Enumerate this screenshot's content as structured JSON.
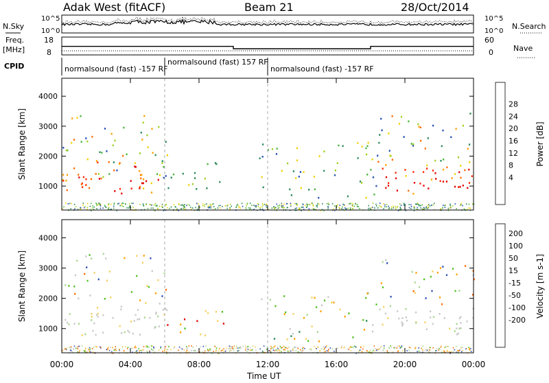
{
  "header": {
    "station": "Adak West (fitACF)",
    "beam": "Beam 21",
    "date": "28/Oct/2014"
  },
  "noise_panel": {
    "left_label": "N.Sky",
    "right_label": "N.Search",
    "ticks_left": [
      "10^5",
      "10^0"
    ],
    "ticks_right": [
      "10^5",
      "10^0"
    ]
  },
  "freq_panel": {
    "left_label": "Freq.",
    "left_unit": "[MHz]",
    "left_ticks": [
      "18",
      "8"
    ],
    "right_label": "Nave",
    "right_ticks": [
      "60",
      "0"
    ],
    "freq_segments": [
      {
        "start_h": 0,
        "end_h": 10,
        "mhz": 13.2
      },
      {
        "start_h": 10,
        "end_h": 18,
        "mhz": 11.5
      },
      {
        "start_h": 18,
        "end_h": 24,
        "mhz": 13.2
      }
    ],
    "nave_level": 12
  },
  "cpid": {
    "label": "CPID",
    "segments": [
      {
        "text": "normalsound (fast) -157 RF",
        "start_h": 0
      },
      {
        "text": "normalsound (fast) 157 RF",
        "start_h": 6
      },
      {
        "text": "normalsound (fast) -157 RF",
        "start_h": 12
      }
    ]
  },
  "x_axis": {
    "label": "Time UT",
    "ticks": [
      "00:00",
      "04:00",
      "08:00",
      "12:00",
      "16:00",
      "20:00",
      "00:00"
    ]
  },
  "chart_data": [
    {
      "type": "heatmap",
      "panel": "power",
      "ylabel": "Slant Range [km]",
      "xlim_hours": [
        0,
        24
      ],
      "ylim_km": [
        200,
        4600
      ],
      "yticks": [
        "1000",
        "2000",
        "3000",
        "4000"
      ],
      "colorbar": {
        "label": "Power [dB]",
        "ticks": [
          "4",
          "8",
          "12",
          "16",
          "20",
          "24",
          "28"
        ],
        "colors": [
          "#1a1ae6",
          "#2850b4",
          "#2a8a5a",
          "#4ab33a",
          "#9ed020",
          "#f0d000",
          "#ffa000",
          "#ff6a00",
          "#ff2800",
          "#e60000"
        ]
      },
      "regions": [
        {
          "t0": 0,
          "t1": 5.9,
          "r0": 700,
          "r1": 1900,
          "level": "high"
        },
        {
          "t0": 0,
          "t1": 6.2,
          "r0": 1300,
          "r1": 3400,
          "level": "mixed"
        },
        {
          "t0": 5.6,
          "t1": 10.2,
          "r0": 900,
          "r1": 1900,
          "level": "low"
        },
        {
          "t0": 11.5,
          "t1": 18.5,
          "r0": 600,
          "r1": 2500,
          "level": "low"
        },
        {
          "t0": 18.6,
          "t1": 24,
          "r0": 700,
          "r1": 1900,
          "level": "high"
        },
        {
          "t0": 18.3,
          "t1": 24,
          "r0": 1800,
          "r1": 3500,
          "level": "mixed"
        }
      ]
    },
    {
      "type": "heatmap",
      "panel": "velocity",
      "ylabel": "Slant Range [km]",
      "xlim_hours": [
        0,
        24
      ],
      "ylim_km": [
        200,
        4600
      ],
      "yticks": [
        "1000",
        "2000",
        "3000",
        "4000"
      ],
      "colorbar": {
        "label": "Velocity [m s-1]",
        "ticks": [
          "200",
          "100",
          "50",
          "15",
          "-15",
          "-50",
          "-100",
          "-200"
        ],
        "colors": [
          "#1e1ea0",
          "#3050b8",
          "#2a8a5a",
          "#50c020",
          "#a8d890",
          "#c8c8c8",
          "#f5d060",
          "#ffa000",
          "#ff6a00",
          "#e60000"
        ]
      },
      "regions": [
        {
          "t0": 0,
          "t1": 6.2,
          "r0": 700,
          "r1": 1900,
          "level": "ground"
        },
        {
          "t0": 0,
          "t1": 6.2,
          "r0": 1900,
          "r1": 3500,
          "level": "mixed"
        },
        {
          "t0": 6.0,
          "t1": 10.0,
          "r0": 800,
          "r1": 1700,
          "level": "neg"
        },
        {
          "t0": 11.5,
          "t1": 18.5,
          "r0": 600,
          "r1": 2200,
          "level": "pos"
        },
        {
          "t0": 18.5,
          "t1": 24,
          "r0": 700,
          "r1": 1800,
          "level": "ground"
        },
        {
          "t0": 18.5,
          "t1": 24,
          "r0": 1800,
          "r1": 3300,
          "level": "mixed"
        }
      ]
    }
  ]
}
